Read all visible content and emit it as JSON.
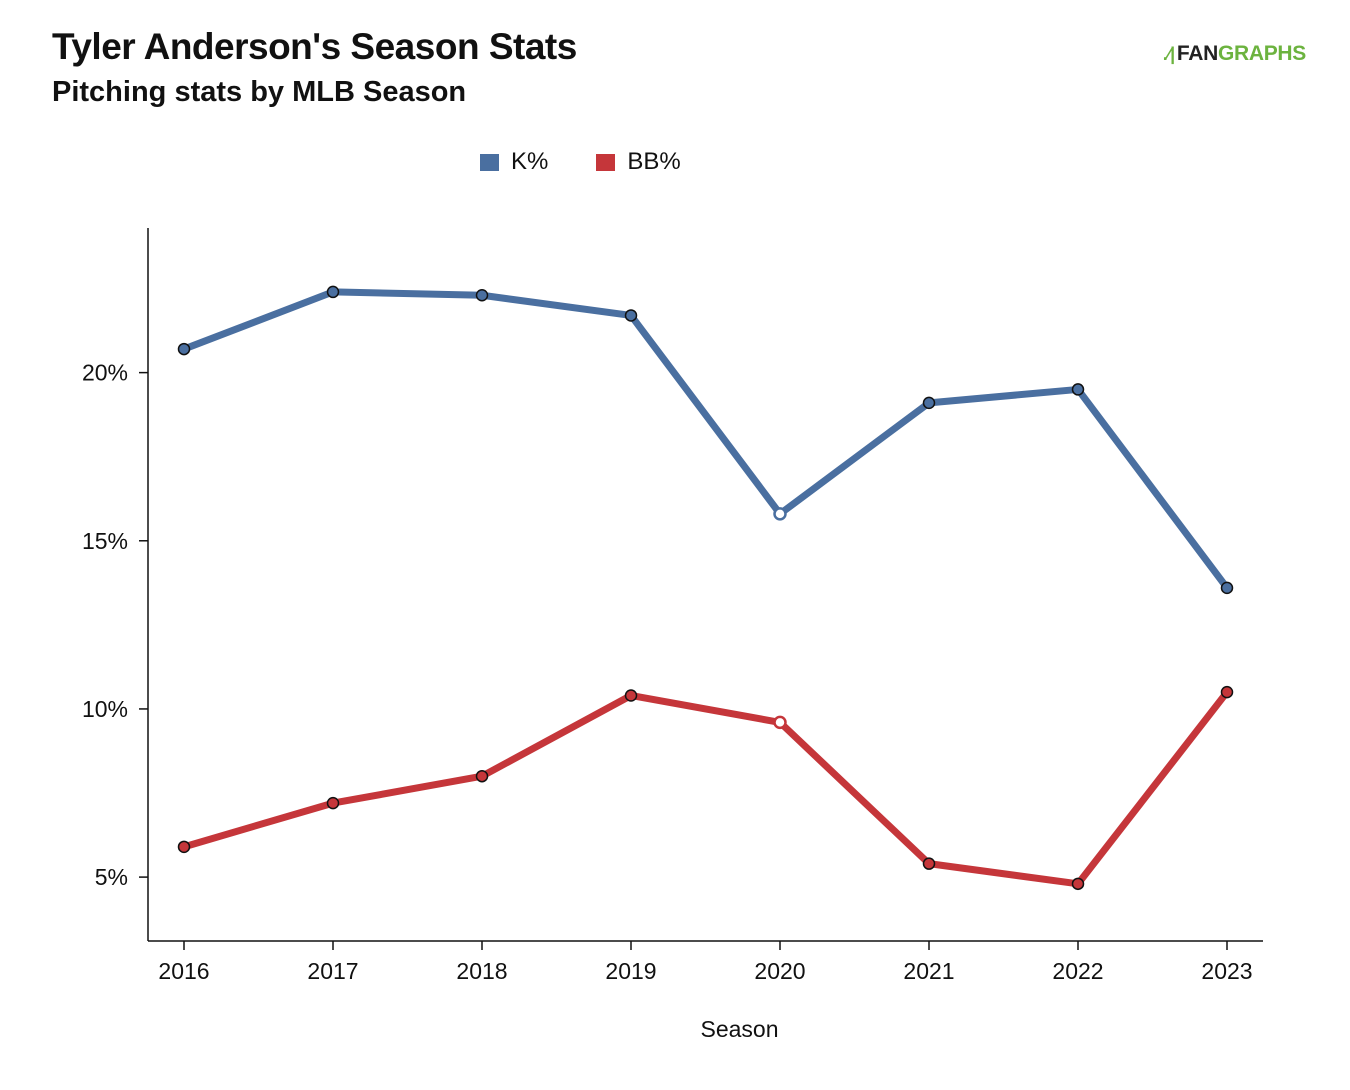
{
  "header": {
    "title": "Tyler Anderson's Season Stats",
    "subtitle": "Pitching stats by MLB Season"
  },
  "logo": {
    "fan": "FAN",
    "graphs": "GRAPHS",
    "icon": "fangraphs-runner-icon"
  },
  "chart_data": {
    "type": "line",
    "title": "Tyler Anderson's Season Stats",
    "subtitle": "Pitching stats by MLB Season",
    "xlabel": "Season",
    "ylabel": "",
    "x": [
      2016,
      2017,
      2018,
      2019,
      2020,
      2021,
      2022,
      2023
    ],
    "x_tick_labels": [
      "2016",
      "2017",
      "2018",
      "2019",
      "2020",
      "2021",
      "2022",
      "2023"
    ],
    "y_ticks": [
      5,
      10,
      15,
      20
    ],
    "y_tick_labels": [
      "5%",
      "10%",
      "15%",
      "20%"
    ],
    "ylim": [
      3.1,
      24.3
    ],
    "grid": false,
    "legend_position": "top-center",
    "series": [
      {
        "name": "K%",
        "color": "#4a6fa0",
        "values": [
          20.7,
          22.4,
          22.3,
          21.7,
          15.8,
          19.1,
          19.5,
          13.6
        ],
        "hollow": [
          false,
          false,
          false,
          false,
          true,
          false,
          false,
          false
        ]
      },
      {
        "name": "BB%",
        "color": "#c5363a",
        "values": [
          5.9,
          7.2,
          8.0,
          10.4,
          9.6,
          5.4,
          4.8,
          10.5
        ],
        "hollow": [
          false,
          false,
          false,
          false,
          true,
          false,
          false,
          false
        ]
      }
    ]
  }
}
